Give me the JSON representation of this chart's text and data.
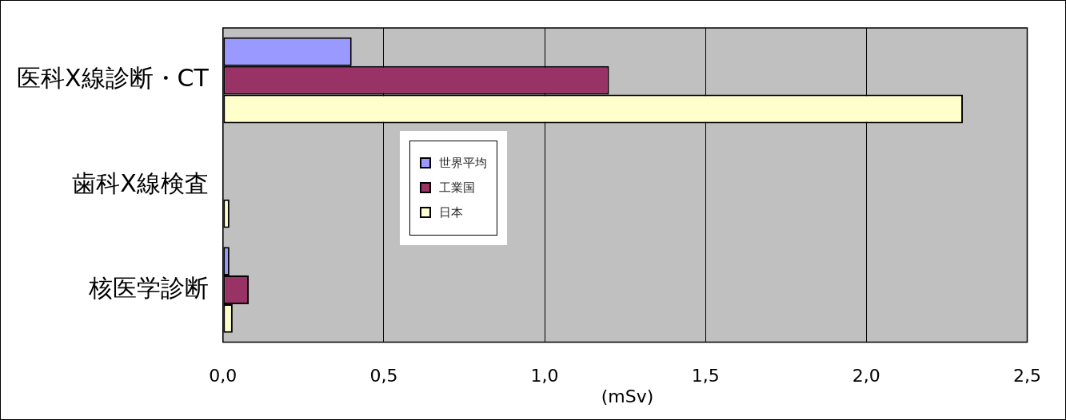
{
  "chart_data": {
    "type": "bar",
    "orientation": "horizontal",
    "xlabel": "(mSv)",
    "categories": [
      "医科X線診断・CT",
      "歯科X線検査",
      "核医学診断"
    ],
    "series": [
      {
        "name": "世界平均",
        "color": "#9999ff",
        "values": [
          0.4,
          null,
          0.02
        ]
      },
      {
        "name": "工業国",
        "color": "#993366",
        "values": [
          1.2,
          null,
          0.08
        ]
      },
      {
        "name": "日本",
        "color": "#ffffcc",
        "values": [
          2.3,
          0.02,
          0.03
        ]
      }
    ],
    "xlim": [
      0,
      2.5
    ],
    "xticks": [
      {
        "value": 0,
        "label": "0,0"
      },
      {
        "value": 0.5,
        "label": "0,5"
      },
      {
        "value": 1,
        "label": "1,0"
      },
      {
        "value": 1.5,
        "label": "1,5"
      },
      {
        "value": 2,
        "label": "2,0"
      },
      {
        "value": 2.5,
        "label": "2,5"
      }
    ],
    "grid": "x",
    "legend": "center"
  }
}
